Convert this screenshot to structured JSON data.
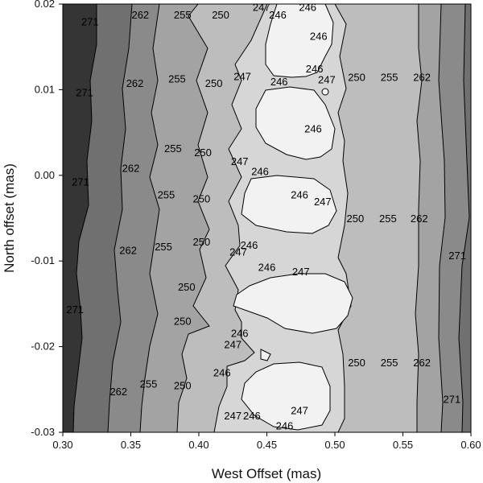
{
  "chart_data": {
    "type": "contour",
    "title": "",
    "xlabel": "West Offset (mas)",
    "ylabel": "North offset (mas)",
    "xlim": [
      0.3,
      0.6
    ],
    "ylim": [
      -0.03,
      0.02
    ],
    "x_ticks": [
      "0.30",
      "0.35",
      "0.40",
      "0.45",
      "0.50",
      "0.55",
      "0.60"
    ],
    "y_ticks": [
      "0.02",
      "0.01",
      "0.00",
      "-0.01",
      "-0.02",
      "-0.03"
    ],
    "grid": false,
    "legend": "none",
    "contour_levels": [
      246,
      247,
      250,
      255,
      262,
      271
    ],
    "band_colors": {
      "below_246": "#f2f2f2",
      "246_247": "#d6d6d6",
      "247_250": "#bdbdbd",
      "250_255": "#a3a3a3",
      "255_262": "#8a8a8a",
      "262_271": "#707070",
      "above_271": "#353535"
    },
    "labels": [
      {
        "text": "271",
        "x": 0.32,
        "y": 0.0179
      },
      {
        "text": "262",
        "x": 0.357,
        "y": 0.0187
      },
      {
        "text": "255",
        "x": 0.388,
        "y": 0.0187
      },
      {
        "text": "250",
        "x": 0.416,
        "y": 0.0187
      },
      {
        "text": "247",
        "x": 0.446,
        "y": 0.0196
      },
      {
        "text": "246",
        "x": 0.458,
        "y": 0.0187
      },
      {
        "text": "246",
        "x": 0.48,
        "y": 0.0196
      },
      {
        "text": "246",
        "x": 0.488,
        "y": 0.0162
      },
      {
        "text": "271",
        "x": 0.316,
        "y": 0.0096
      },
      {
        "text": "262",
        "x": 0.353,
        "y": 0.0107
      },
      {
        "text": "255",
        "x": 0.384,
        "y": 0.0112
      },
      {
        "text": "250",
        "x": 0.411,
        "y": 0.0107
      },
      {
        "text": "247",
        "x": 0.432,
        "y": 0.0115
      },
      {
        "text": "246",
        "x": 0.459,
        "y": 0.0109
      },
      {
        "text": "246",
        "x": 0.485,
        "y": 0.0124
      },
      {
        "text": "247",
        "x": 0.494,
        "y": 0.0111
      },
      {
        "text": "250",
        "x": 0.516,
        "y": 0.0114
      },
      {
        "text": "255",
        "x": 0.54,
        "y": 0.0114
      },
      {
        "text": "262",
        "x": 0.564,
        "y": 0.0114
      },
      {
        "text": "246",
        "x": 0.484,
        "y": 0.0054
      },
      {
        "text": "255",
        "x": 0.381,
        "y": 0.0031
      },
      {
        "text": "250",
        "x": 0.403,
        "y": 0.0026
      },
      {
        "text": "247",
        "x": 0.43,
        "y": 0.0016
      },
      {
        "text": "246",
        "x": 0.445,
        "y": 0.0004
      },
      {
        "text": "262",
        "x": 0.35,
        "y": 0.0008
      },
      {
        "text": "271",
        "x": 0.313,
        "y": -0.0008
      },
      {
        "text": "255",
        "x": 0.376,
        "y": -0.0023
      },
      {
        "text": "250",
        "x": 0.402,
        "y": -0.0028
      },
      {
        "text": "246",
        "x": 0.474,
        "y": -0.0023
      },
      {
        "text": "247",
        "x": 0.491,
        "y": -0.0031
      },
      {
        "text": "250",
        "x": 0.515,
        "y": -0.0051
      },
      {
        "text": "255",
        "x": 0.539,
        "y": -0.0051
      },
      {
        "text": "262",
        "x": 0.562,
        "y": -0.0051
      },
      {
        "text": "262",
        "x": 0.348,
        "y": -0.0088
      },
      {
        "text": "255",
        "x": 0.374,
        "y": -0.0084
      },
      {
        "text": "250",
        "x": 0.402,
        "y": -0.0078
      },
      {
        "text": "247",
        "x": 0.429,
        "y": -0.009
      },
      {
        "text": "246",
        "x": 0.437,
        "y": -0.0082
      },
      {
        "text": "271",
        "x": 0.59,
        "y": -0.0094
      },
      {
        "text": "246",
        "x": 0.45,
        "y": -0.0108
      },
      {
        "text": "247",
        "x": 0.475,
        "y": -0.0113
      },
      {
        "text": "250",
        "x": 0.391,
        "y": -0.0131
      },
      {
        "text": "271",
        "x": 0.309,
        "y": -0.0157
      },
      {
        "text": "250",
        "x": 0.388,
        "y": -0.0171
      },
      {
        "text": "246",
        "x": 0.43,
        "y": -0.0185
      },
      {
        "text": "247",
        "x": 0.425,
        "y": -0.0198
      },
      {
        "text": "250",
        "x": 0.516,
        "y": -0.0219
      },
      {
        "text": "255",
        "x": 0.54,
        "y": -0.0219
      },
      {
        "text": "262",
        "x": 0.564,
        "y": -0.0219
      },
      {
        "text": "246",
        "x": 0.417,
        "y": -0.0231
      },
      {
        "text": "255",
        "x": 0.363,
        "y": -0.0244
      },
      {
        "text": "250",
        "x": 0.388,
        "y": -0.0246
      },
      {
        "text": "262",
        "x": 0.341,
        "y": -0.0253
      },
      {
        "text": "271",
        "x": 0.586,
        "y": -0.0262
      },
      {
        "text": "247",
        "x": 0.474,
        "y": -0.0275
      },
      {
        "text": "247",
        "x": 0.425,
        "y": -0.0281
      },
      {
        "text": "246",
        "x": 0.439,
        "y": -0.0281
      },
      {
        "text": "246",
        "x": 0.463,
        "y": -0.0293
      }
    ]
  }
}
